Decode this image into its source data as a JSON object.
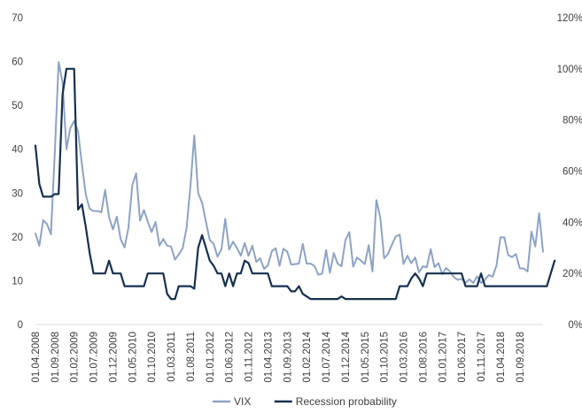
{
  "chart_data": {
    "type": "line",
    "title": "",
    "xlabel": "",
    "ylabel": "",
    "y_left": {
      "min": 0,
      "max": 70,
      "ticks": [
        0,
        10,
        20,
        30,
        40,
        50,
        60,
        70
      ],
      "tick_labels": [
        "0",
        "10",
        "20",
        "30",
        "40",
        "50",
        "60",
        "70"
      ]
    },
    "y_right": {
      "min": 0,
      "max": 120,
      "ticks": [
        0,
        20,
        40,
        60,
        80,
        100,
        120
      ],
      "tick_labels": [
        "0%",
        "20%",
        "40%",
        "60%",
        "80%",
        "100%",
        "120%"
      ]
    },
    "x_tick_labels": [
      "01.04.2008",
      "01.09.2008",
      "01.02.2009",
      "01.07.2009",
      "01.12.2009",
      "01.05.2010",
      "01.10.2010",
      "01.03.2011",
      "01.08.2011",
      "01.01.2012",
      "01.06.2012",
      "01.11.2012",
      "01.04.2013",
      "01.09.2013",
      "01.02.2014",
      "01.07.2014",
      "01.12.2014",
      "01.05.2015",
      "01.10.2015",
      "01.03.2016",
      "01.08.2016",
      "01.01.2017",
      "01.06.2017",
      "01.11.2017",
      "01.04.2018",
      "01.09.2018"
    ],
    "x_tick_step_months": 5,
    "x_start": "2008-04",
    "x_end": "2018-12",
    "grid": false,
    "legend_position": "bottom",
    "series": [
      {
        "name": "VIX",
        "axis": "left",
        "color": "#8ea3c4",
        "values": [
          20.8,
          18.0,
          23.8,
          22.9,
          20.6,
          39.4,
          59.9,
          55.3,
          40.0,
          44.8,
          46.4,
          44.1,
          36.5,
          29.6,
          26.4,
          25.9,
          25.9,
          25.6,
          30.7,
          24.5,
          21.7,
          24.6,
          19.5,
          17.6,
          22.1,
          31.9,
          34.5,
          23.7,
          26.1,
          23.5,
          21.1,
          23.4,
          18.0,
          19.5,
          18.0,
          17.8,
          14.8,
          16.0,
          17.4,
          22.0,
          31.6,
          43.1,
          30.0,
          27.8,
          23.4,
          19.3,
          18.4,
          15.5,
          17.2,
          24.1,
          17.1,
          18.9,
          17.5,
          15.7,
          18.6,
          15.7,
          18.0,
          14.3,
          15.1,
          12.7,
          13.5,
          16.7,
          17.4,
          13.4,
          17.3,
          16.6,
          13.7,
          13.8,
          13.9,
          18.4,
          13.9,
          13.9,
          13.4,
          11.4,
          11.6,
          17.0,
          11.8,
          16.3,
          13.9,
          13.3,
          19.2,
          21.1,
          13.2,
          15.3,
          14.6,
          13.8,
          18.1,
          12.1,
          28.4,
          24.4,
          15.1,
          16.1,
          18.2,
          20.1,
          20.5,
          13.8,
          15.7,
          14.0,
          15.3,
          11.9,
          13.3,
          13.1,
          17.2,
          13.1,
          14.0,
          11.5,
          12.9,
          12.1,
          10.8,
          10.2,
          10.4,
          9.5,
          10.3,
          9.5,
          11.0,
          9.5,
          10.2,
          11.3,
          10.9,
          13.5,
          19.9,
          19.9,
          15.9,
          15.4,
          16.1,
          12.8,
          12.8,
          12.1,
          21.2,
          17.8,
          25.4,
          16.6
        ]
      },
      {
        "name": "Recession probability",
        "axis": "right",
        "color": "#17304f",
        "values": [
          70,
          55,
          50,
          50,
          50,
          51,
          51,
          90,
          100,
          100,
          100,
          45,
          47,
          38,
          28,
          20,
          20,
          20,
          20,
          25,
          20,
          20,
          20,
          15,
          15,
          15,
          15,
          15,
          15,
          20,
          20,
          20,
          20,
          20,
          12,
          10,
          10,
          15,
          15,
          15,
          15,
          14,
          30,
          35,
          30,
          25,
          23,
          20,
          20,
          15,
          20,
          15,
          20,
          20,
          25,
          24,
          20,
          20,
          20,
          20,
          20,
          15,
          15,
          15,
          15,
          15,
          13,
          13,
          15,
          12,
          11,
          10,
          10,
          10,
          10,
          10,
          10,
          10,
          10,
          11,
          10,
          10,
          10,
          10,
          10,
          10,
          10,
          10,
          10,
          10,
          10,
          10,
          10,
          10,
          15,
          15,
          15,
          18,
          20,
          18,
          15,
          20,
          20,
          20,
          20,
          20,
          20,
          20,
          20,
          20,
          20,
          15,
          15,
          15,
          15,
          20,
          15,
          15,
          15,
          15,
          15,
          15,
          15,
          15,
          15,
          15,
          15,
          15,
          15,
          15,
          15,
          15,
          15,
          20,
          25
        ]
      }
    ]
  }
}
